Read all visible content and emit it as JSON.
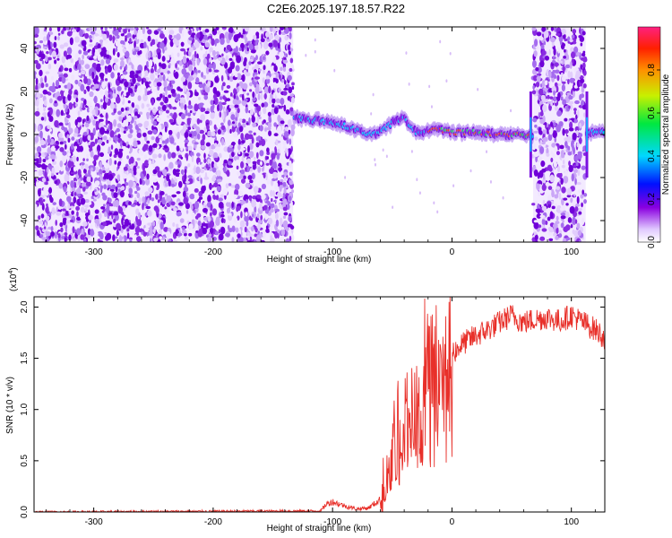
{
  "title": "C2E6.2025.197.18.57.R22",
  "colors": {
    "line": "#e8302a",
    "low": "#7b00d8",
    "mid": "#0a70ff",
    "high": "#ff2060"
  },
  "chart_data": [
    {
      "type": "heatmap",
      "xlabel": "Height of straight line (km)",
      "ylabel": "Frequency (Hz)",
      "xlim": [
        -350,
        128
      ],
      "ylim": [
        -50,
        50
      ],
      "xticks": [
        -300,
        -200,
        -100,
        0,
        100
      ],
      "yticks": [
        -40,
        -20,
        0,
        20,
        40
      ],
      "colorbar": {
        "label": "Normalized spectral amplitude",
        "range": [
          0,
          1
        ],
        "ticks": [
          "0.0",
          "0.2",
          "0.4",
          "0.6",
          "0.8"
        ],
        "tick_values": [
          0,
          0.2,
          0.4,
          0.6,
          0.8
        ]
      },
      "noise_regions": [
        [
          -350,
          -133
        ],
        [
          68,
          112
        ]
      ],
      "signal_track": [
        {
          "x": -132,
          "y": 8
        },
        {
          "x": -120,
          "y": 7
        },
        {
          "x": -105,
          "y": 6
        },
        {
          "x": -95,
          "y": 5
        },
        {
          "x": -85,
          "y": 3
        },
        {
          "x": -75,
          "y": 1
        },
        {
          "x": -65,
          "y": 0
        },
        {
          "x": -55,
          "y": 3
        },
        {
          "x": -48,
          "y": 6
        },
        {
          "x": -40,
          "y": 8
        },
        {
          "x": -35,
          "y": 3
        },
        {
          "x": -30,
          "y": 1
        },
        {
          "x": -20,
          "y": 2
        },
        {
          "x": -10,
          "y": 2
        },
        {
          "x": 0,
          "y": 1
        },
        {
          "x": 20,
          "y": 1
        },
        {
          "x": 40,
          "y": 0
        },
        {
          "x": 60,
          "y": 0
        },
        {
          "x": 66,
          "y": 0
        },
        {
          "x": 116,
          "y": 1
        },
        {
          "x": 128,
          "y": 1
        }
      ]
    },
    {
      "type": "line",
      "xlabel": "Height of straight line (km)",
      "ylabel": "SNR (10 * v/v)",
      "yunit": "(x10",
      "yunit_exp": "4",
      "yunit_close": ")",
      "xlim": [
        -350,
        128
      ],
      "ylim": [
        0,
        2.1
      ],
      "xticks": [
        -300,
        -200,
        -100,
        0,
        100
      ],
      "yticks": [
        "0.0",
        "0.5",
        "1.0",
        "1.5",
        "2.0"
      ],
      "ytick_values": [
        0,
        0.5,
        1.0,
        1.5,
        2.0
      ],
      "series": [
        {
          "x": [
            -350,
            -110,
            -105,
            -100,
            -90,
            -80,
            -70,
            -60,
            -55,
            -50,
            -45,
            -40,
            -35,
            -30,
            -25,
            -22,
            -20,
            -15,
            -10,
            0,
            10,
            20,
            30,
            40,
            50,
            60,
            70,
            80,
            90,
            100,
            110,
            120,
            128
          ],
          "values": [
            0.0,
            0.01,
            0.08,
            0.1,
            0.06,
            0.03,
            0.04,
            0.12,
            0.25,
            0.6,
            0.85,
            0.9,
            1.0,
            1.05,
            1.1,
            1.8,
            1.35,
            1.45,
            1.5,
            1.55,
            1.65,
            1.72,
            1.78,
            1.85,
            1.92,
            1.85,
            1.88,
            1.9,
            1.86,
            1.92,
            1.85,
            1.78,
            1.7
          ]
        }
      ]
    }
  ]
}
